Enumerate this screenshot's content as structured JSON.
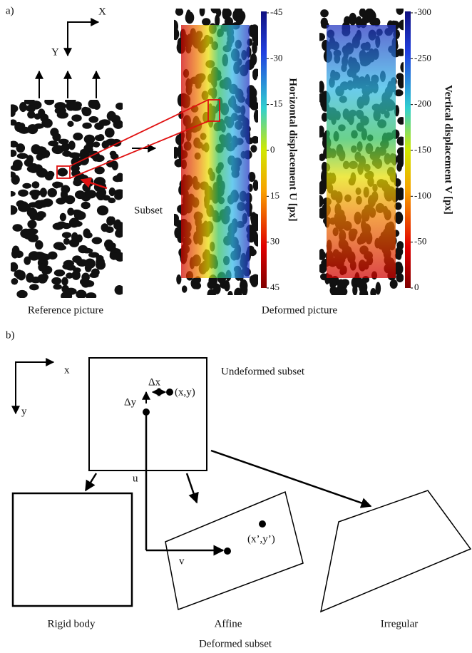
{
  "panel_a": {
    "label": "a)",
    "axis_x": "X",
    "axis_y": "Y",
    "subset": "Subset",
    "reference_caption": "Reference picture",
    "deformed_caption": "Deformed picture",
    "horizontal_colorbar": {
      "title": "Horizontal displacement U [px]",
      "ticks": [
        -45,
        -30,
        -15,
        0,
        15,
        30,
        45
      ]
    },
    "vertical_colorbar": {
      "title": "Vertical displacement V [px]",
      "ticks": [
        -300,
        -250,
        -200,
        -150,
        -100,
        -50,
        0
      ]
    }
  },
  "panel_b": {
    "label": "b)",
    "axis_x": "x",
    "axis_y": "y",
    "undeformed_title": "Undeformed subset",
    "point": "(x,y)",
    "dx": "Δx",
    "dy": "Δy",
    "u": "u",
    "v": "v",
    "deformed_point": "(x’,y’)",
    "rigid_caption": "Rigid body",
    "affine_caption": "Affine",
    "irregular_caption": "Irregular",
    "deformed_caption": "Deformed subset"
  }
}
